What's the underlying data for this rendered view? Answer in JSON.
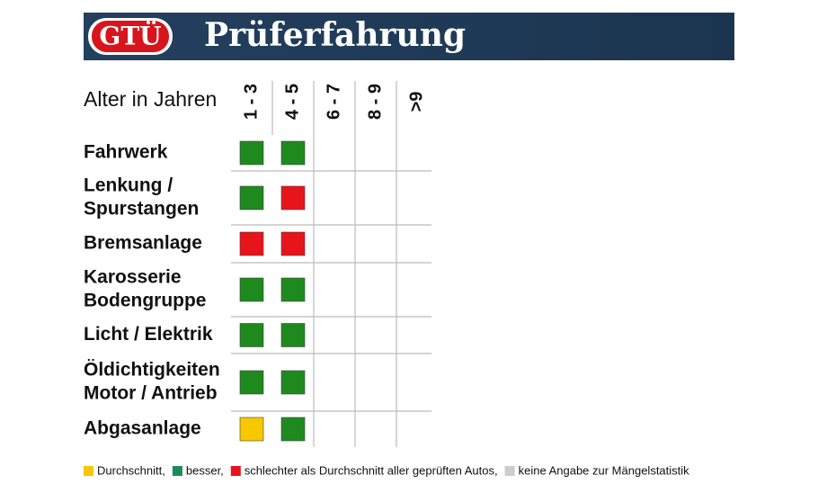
{
  "header": {
    "logo": "GTÜ",
    "title": "Prüferfahrung"
  },
  "table": {
    "axis_label": "Alter in Jahren",
    "columns": [
      "1 - 3",
      "4 - 5",
      "6 - 7",
      "8 - 9",
      ">9"
    ],
    "rows": [
      {
        "lines": [
          "Fahrwerk"
        ],
        "cells": [
          "#1e8a1e",
          "#1e8a1e",
          null,
          null,
          null
        ]
      },
      {
        "lines": [
          "Lenkung /",
          "Spurstangen"
        ],
        "cells": [
          "#1e8a1e",
          "#e8141c",
          null,
          null,
          null
        ]
      },
      {
        "lines": [
          "Bremsanlage"
        ],
        "cells": [
          "#e8141c",
          "#e8141c",
          null,
          null,
          null
        ]
      },
      {
        "lines": [
          "Karosserie",
          "Bodengruppe"
        ],
        "cells": [
          "#1e8a1e",
          "#1e8a1e",
          null,
          null,
          null
        ]
      },
      {
        "lines": [
          "Licht / Elektrik"
        ],
        "cells": [
          "#1e8a1e",
          "#1e8a1e",
          null,
          null,
          null
        ]
      },
      {
        "lines": [
          "Öldichtigkeiten",
          "Motor / Antrieb"
        ],
        "cells": [
          "#1e8a1e",
          "#1e8a1e",
          null,
          null,
          null
        ]
      },
      {
        "lines": [
          "Abgasanlage"
        ],
        "cells": [
          "#f5c800",
          "#1e8a1e",
          null,
          null,
          null
        ]
      }
    ]
  },
  "legend": [
    {
      "color": "#f5c800",
      "text": "Durchschnitt,"
    },
    {
      "color": "#1e8a5a",
      "text": "besser,"
    },
    {
      "color": "#e8141c",
      "text": "schlechter als Durchschnitt aller geprüften Autos,"
    },
    {
      "color": "#cccccc",
      "text": "keine Angabe zur Mängelstatistik"
    }
  ]
}
